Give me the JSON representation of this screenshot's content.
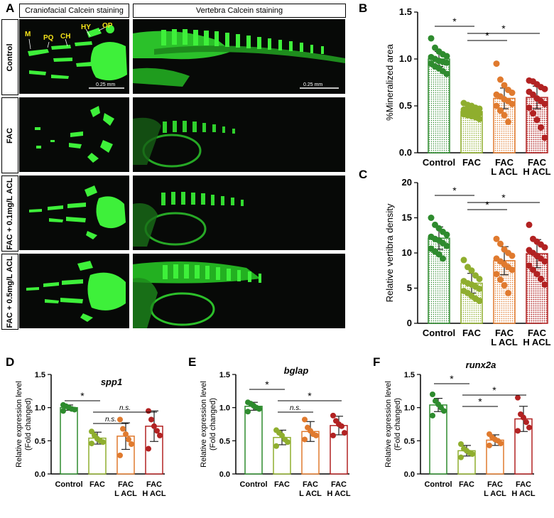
{
  "panels": {
    "A": {
      "label": "A",
      "headers": {
        "craniofacial": "Craniofacial Calcein staining",
        "vertebra": "Vertebra Calcein staining"
      },
      "rows": [
        "Control",
        "FAC",
        "FAC + 0.1mg/L ACL",
        "FAC + 0.5mg/L ACL"
      ],
      "annotations": [
        "M",
        "PQ",
        "CH",
        "HY",
        "OP"
      ],
      "scale_bar_left": "0.25 mm",
      "scale_bar_right": "0.25 mm"
    },
    "B": "B",
    "C": "C",
    "D": "D",
    "E": "E",
    "F": "F"
  },
  "colors": {
    "control": "#2e8b2e",
    "fac": "#8fae2e",
    "lacl": "#e07a2e",
    "hacl": "#b22222",
    "fluor": "#3ef03a"
  },
  "chart_data": [
    {
      "id": "B",
      "type": "bar",
      "title": "",
      "ylabel": "%Mineralized area",
      "ylim": [
        0,
        1.5
      ],
      "yticks": [
        "0.0",
        "0.5",
        "1.0",
        "1.5"
      ],
      "ytick_values": [
        0,
        0.5,
        1.0,
        1.5
      ],
      "categories": [
        "Control",
        "FAC",
        "FAC\nL ACL",
        "FAC\nH ACL"
      ],
      "values": [
        1.0,
        0.44,
        0.58,
        0.59
      ],
      "errors": [
        0.08,
        0.05,
        0.11,
        0.12
      ],
      "points": [
        [
          1.22,
          1.12,
          1.08,
          1.05,
          1.03,
          1.02,
          1.0,
          0.98,
          0.97,
          0.96,
          0.95,
          0.92,
          0.9,
          0.87,
          0.84
        ],
        [
          0.53,
          0.51,
          0.5,
          0.48,
          0.47,
          0.46,
          0.45,
          0.44,
          0.43,
          0.42,
          0.41,
          0.4,
          0.39,
          0.38,
          0.36
        ],
        [
          0.95,
          0.78,
          0.72,
          0.67,
          0.64,
          0.62,
          0.6,
          0.57,
          0.55,
          0.52,
          0.5,
          0.45,
          0.4,
          0.33
        ],
        [
          0.77,
          0.76,
          0.73,
          0.7,
          0.68,
          0.65,
          0.62,
          0.58,
          0.55,
          0.52,
          0.48,
          0.42,
          0.35,
          0.27,
          0.16
        ]
      ],
      "significance": [
        {
          "from": 0,
          "to": 1,
          "label": "*"
        },
        {
          "from": 1,
          "to": 3,
          "label": "*"
        },
        {
          "from": 1,
          "to": 2,
          "label": "*"
        }
      ]
    },
    {
      "id": "C",
      "type": "bar",
      "title": "",
      "ylabel": "Relative vertibra density",
      "ylim": [
        0,
        20
      ],
      "yticks": [
        "0",
        "5",
        "10",
        "15",
        "20"
      ],
      "ytick_values": [
        0,
        5,
        10,
        15,
        20
      ],
      "categories": [
        "Control",
        "FAC",
        "FAC\nL ACL",
        "FAC\nH ACL"
      ],
      "values": [
        12.1,
        5.7,
        8.9,
        9.9
      ],
      "errors": [
        1.6,
        1.4,
        2.0,
        2.0
      ],
      "points": [
        [
          15.0,
          14.0,
          13.5,
          13.0,
          12.6,
          12.3,
          12.0,
          11.8,
          11.4,
          11.0,
          10.6,
          10.2,
          9.8,
          9.2
        ],
        [
          9.0,
          8.0,
          7.5,
          6.8,
          6.3,
          6.0,
          5.7,
          5.5,
          5.2,
          4.9,
          4.6,
          4.3,
          3.9,
          3.5,
          3.2
        ],
        [
          12.0,
          11.3,
          10.5,
          10.0,
          9.6,
          9.2,
          8.8,
          8.4,
          8.0,
          7.6,
          7.0,
          6.2,
          5.4,
          4.3
        ],
        [
          14.0,
          12.0,
          11.6,
          11.2,
          10.8,
          10.4,
          10.0,
          9.6,
          9.2,
          8.8,
          8.2,
          7.6,
          7.0,
          6.3,
          5.5
        ]
      ],
      "significance": [
        {
          "from": 0,
          "to": 1,
          "label": "*"
        },
        {
          "from": 1,
          "to": 3,
          "label": "*"
        },
        {
          "from": 1,
          "to": 2,
          "label": "*"
        }
      ]
    },
    {
      "id": "D",
      "type": "bar",
      "title": "spp1",
      "ylabel": "Relative expression level\n(Fold changed)",
      "ylim": [
        0,
        1.5
      ],
      "yticks": [
        "0.0",
        "0.5",
        "1.0",
        "1.5"
      ],
      "ytick_values": [
        0,
        0.5,
        1.0,
        1.5
      ],
      "categories": [
        "Control",
        "FAC",
        "FAC\nL ACL",
        "FAC\nH ACL"
      ],
      "values": [
        1.0,
        0.54,
        0.57,
        0.72
      ],
      "errors": [
        0.04,
        0.09,
        0.2,
        0.23
      ],
      "points": [
        [
          1.04,
          1.02,
          1.0,
          0.98,
          0.97,
          0.95
        ],
        [
          0.64,
          0.58,
          0.53,
          0.5,
          0.48,
          0.46
        ],
        [
          0.82,
          0.68,
          0.6,
          0.52,
          0.45,
          0.28
        ],
        [
          0.95,
          0.82,
          0.72,
          0.65,
          0.58,
          0.38
        ]
      ],
      "significance": [
        {
          "from": 0,
          "to": 1,
          "label": "*"
        },
        {
          "from": 1,
          "to": 3,
          "label": "n.s."
        },
        {
          "from": 1,
          "to": 2,
          "label": "n.s."
        }
      ]
    },
    {
      "id": "E",
      "type": "bar",
      "title": "bglap",
      "ylabel": "Relative expression level\n(Fold changed)",
      "ylim": [
        0,
        1.5
      ],
      "yticks": [
        "0.0",
        "0.5",
        "1.0",
        "1.5"
      ],
      "ytick_values": [
        0,
        0.5,
        1.0,
        1.5
      ],
      "categories": [
        "Control",
        "FAC",
        "FAC\nL ACL",
        "FAC\nH ACL"
      ],
      "values": [
        1.02,
        0.55,
        0.64,
        0.73
      ],
      "errors": [
        0.06,
        0.11,
        0.15,
        0.14
      ],
      "points": [
        [
          1.08,
          1.06,
          1.03,
          1.0,
          0.98,
          0.94
        ],
        [
          0.66,
          0.62,
          0.58,
          0.52,
          0.48,
          0.42
        ],
        [
          0.82,
          0.7,
          0.65,
          0.6,
          0.58,
          0.52
        ],
        [
          0.88,
          0.8,
          0.75,
          0.72,
          0.62,
          0.58
        ]
      ],
      "significance": [
        {
          "from": 0,
          "to": 1,
          "label": "*"
        },
        {
          "from": 1,
          "to": 3,
          "label": "*"
        },
        {
          "from": 1,
          "to": 2,
          "label": "n.s."
        }
      ]
    },
    {
      "id": "F",
      "type": "bar",
      "title": "runx2a",
      "ylabel": "Relative expression level\n(Fold changed)",
      "ylim": [
        0,
        1.5
      ],
      "yticks": [
        "0.0",
        "0.5",
        "1.0",
        "1.5"
      ],
      "ytick_values": [
        0,
        0.5,
        1.0,
        1.5
      ],
      "categories": [
        "Control",
        "FAC",
        "FAC\nL ACL",
        "FAC\nH ACL"
      ],
      "values": [
        1.04,
        0.35,
        0.51,
        0.83
      ],
      "errors": [
        0.1,
        0.08,
        0.08,
        0.19
      ],
      "points": [
        [
          1.2,
          1.1,
          1.05,
          1.0,
          0.95,
          0.88
        ],
        [
          0.45,
          0.38,
          0.35,
          0.32,
          0.3,
          0.25
        ],
        [
          0.6,
          0.55,
          0.52,
          0.5,
          0.46,
          0.43
        ],
        [
          1.15,
          0.9,
          0.85,
          0.78,
          0.7,
          0.65
        ]
      ],
      "significance": [
        {
          "from": 0,
          "to": 1,
          "label": "*"
        },
        {
          "from": 1,
          "to": 3,
          "label": "*"
        },
        {
          "from": 1,
          "to": 2,
          "label": "*"
        }
      ]
    }
  ]
}
